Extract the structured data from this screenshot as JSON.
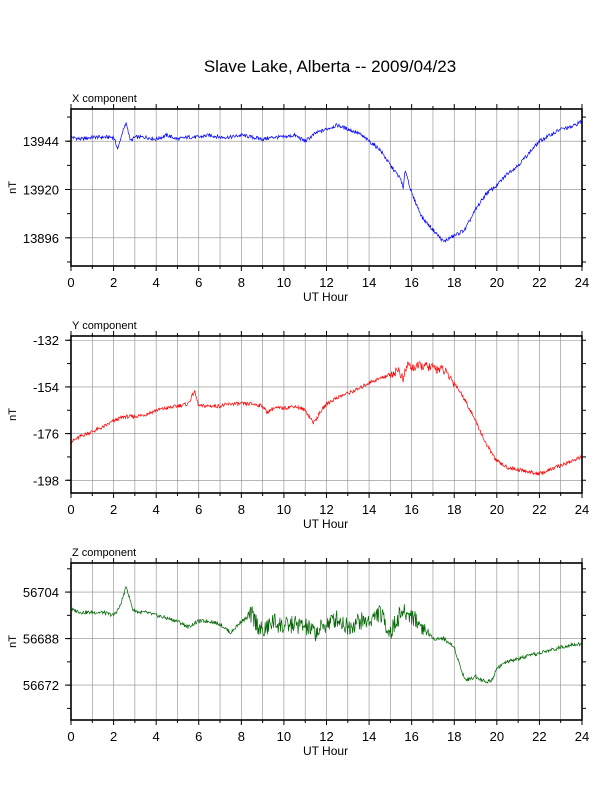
{
  "page": {
    "title": "Slave Lake, Alberta -- 2009/04/23"
  },
  "colors": {
    "x": "#0000ff",
    "y": "#ff0000",
    "z": "#006400",
    "grid": "#8c8c8c",
    "frame": "#000000"
  },
  "chart_data": [
    {
      "type": "line",
      "title": "X component",
      "xlabel": "UT Hour",
      "ylabel": "nT",
      "xlim": [
        0,
        24
      ],
      "ylim": [
        13882,
        13960
      ],
      "grid": true,
      "xticks": [
        0,
        2,
        4,
        6,
        8,
        10,
        12,
        14,
        16,
        18,
        20,
        22,
        24
      ],
      "yticks": [
        13896,
        13920,
        13944
      ],
      "series": [
        {
          "color": "#0000ff",
          "x": [
            0,
            0.5,
            1,
            1.5,
            2,
            2.2,
            2.4,
            2.6,
            2.8,
            3,
            3.5,
            4,
            4.5,
            5,
            5.5,
            6,
            6.5,
            7,
            7.5,
            8,
            8.5,
            9,
            9.5,
            10,
            10.5,
            11,
            11.5,
            12,
            12.5,
            13,
            13.5,
            14,
            14.5,
            15,
            15.5,
            15.6,
            15.7,
            16,
            16.5,
            17,
            17.5,
            17.8,
            18,
            18.5,
            19,
            19.5,
            20,
            20.5,
            21,
            21.5,
            22,
            22.5,
            23,
            23.5,
            24
          ],
          "y": [
            13946,
            13945,
            13946,
            13946,
            13946,
            13940,
            13948,
            13953,
            13944,
            13946,
            13946,
            13945,
            13947,
            13945,
            13946,
            13946,
            13947,
            13946,
            13946,
            13947,
            13946,
            13945,
            13946,
            13946,
            13947,
            13944,
            13948,
            13950,
            13952,
            13950,
            13948,
            13944,
            13940,
            13932,
            13925,
            13920,
            13930,
            13918,
            13906,
            13900,
            13894,
            13896,
            13897,
            13900,
            13910,
            13918,
            13922,
            13928,
            13932,
            13938,
            13944,
            13947,
            13950,
            13951,
            13954
          ]
        }
      ]
    },
    {
      "type": "line",
      "title": "Y component",
      "xlabel": "UT Hour",
      "ylabel": "nT",
      "xlim": [
        0,
        24
      ],
      "ylim": [
        -204,
        -130
      ],
      "grid": true,
      "xticks": [
        0,
        2,
        4,
        6,
        8,
        10,
        12,
        14,
        16,
        18,
        20,
        22,
        24
      ],
      "yticks": [
        -132,
        -154,
        -176,
        -198
      ],
      "series": [
        {
          "color": "#ff0000",
          "x": [
            0,
            0.5,
            1,
            1.5,
            2,
            2.5,
            3,
            3.5,
            4,
            4.5,
            5,
            5.5,
            5.8,
            6,
            6.5,
            7,
            7.5,
            8,
            8.5,
            9,
            9.2,
            9.5,
            10,
            10.5,
            11,
            11.4,
            11.7,
            12,
            12.5,
            13,
            13.5,
            14,
            14.5,
            15,
            15.4,
            15.6,
            15.8,
            16,
            16.5,
            17,
            17.5,
            18,
            18.5,
            19,
            19.5,
            20,
            20.5,
            21,
            21.5,
            22,
            22.5,
            23,
            23.5,
            24
          ],
          "y": [
            -180,
            -177,
            -175,
            -173,
            -170,
            -168,
            -168,
            -167,
            -165,
            -164,
            -163,
            -162,
            -156,
            -163,
            -163,
            -163,
            -162,
            -162,
            -162,
            -163,
            -166,
            -164,
            -164,
            -163,
            -165,
            -171,
            -166,
            -162,
            -159,
            -157,
            -155,
            -152,
            -150,
            -148,
            -146,
            -151,
            -143,
            -145,
            -144,
            -145,
            -146,
            -152,
            -160,
            -170,
            -181,
            -189,
            -192,
            -193,
            -194,
            -195,
            -193,
            -191,
            -189,
            -187
          ]
        }
      ]
    },
    {
      "type": "line",
      "title": "Z component",
      "xlabel": "UT Hour",
      "ylabel": "nT",
      "xlim": [
        0,
        24
      ],
      "ylim": [
        56660,
        56714
      ],
      "grid": true,
      "xticks": [
        0,
        2,
        4,
        6,
        8,
        10,
        12,
        14,
        16,
        18,
        20,
        22,
        24
      ],
      "yticks": [
        56672,
        56688,
        56704
      ],
      "series": [
        {
          "color": "#006400",
          "x": [
            0,
            0.5,
            1,
            1.5,
            2,
            2.3,
            2.6,
            2.9,
            3.2,
            3.5,
            4,
            4.5,
            5,
            5.5,
            6,
            6.5,
            7,
            7.5,
            8,
            8.5,
            9,
            9.5,
            10,
            10.5,
            11,
            11.5,
            12,
            12.5,
            13,
            13.5,
            14,
            14.5,
            15,
            15.5,
            16,
            16.5,
            17,
            17.5,
            18,
            18.3,
            18.5,
            18.7,
            19,
            19.5,
            19.8,
            20,
            20.5,
            21,
            21.5,
            22,
            22.5,
            23,
            23.5,
            24
          ],
          "y": [
            56698,
            56697,
            56697,
            56697,
            56696,
            56699,
            56706,
            56698,
            56697,
            56697,
            56696,
            56695,
            56694,
            56692,
            56694,
            56694,
            56693,
            56690,
            56694,
            56696,
            56690,
            56694,
            56692,
            56693,
            56692,
            56690,
            56693,
            56695,
            56692,
            56694,
            56694,
            56697,
            56690,
            56697,
            56696,
            56692,
            56688,
            56688,
            56685,
            56678,
            56674,
            56674,
            56675,
            56673,
            56674,
            56678,
            56680,
            56681,
            56682,
            56683,
            56684,
            56685,
            56686,
            56686
          ]
        }
      ]
    }
  ]
}
